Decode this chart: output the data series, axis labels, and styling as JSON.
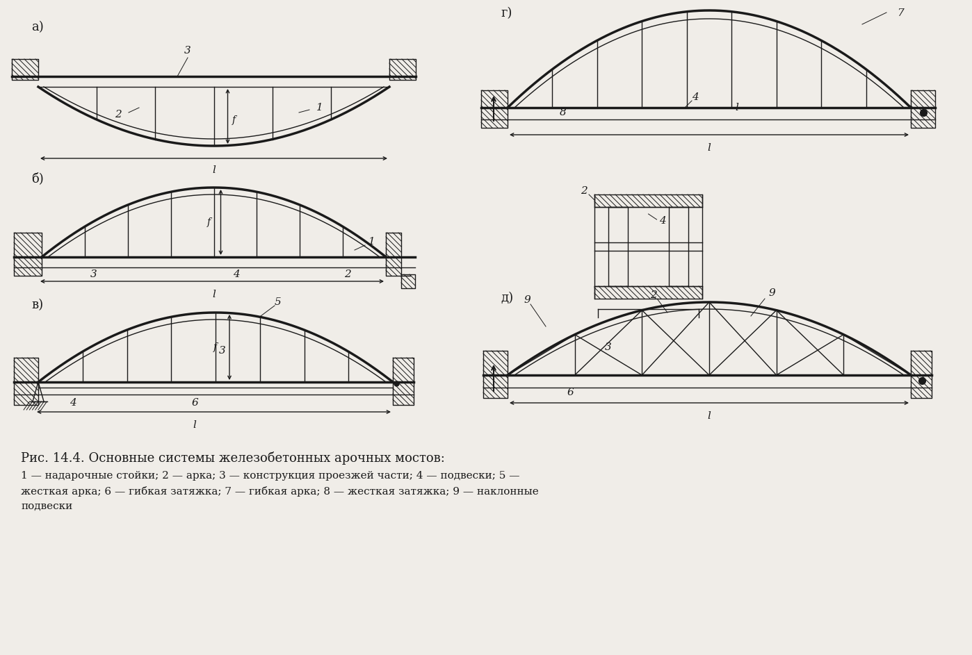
{
  "bg_color": "#f0ede8",
  "line_color": "#1a1a1a",
  "title": "Рис. 14.4. Основные системы железобетонных арочных мостов:",
  "caption_line1": "1 — надарочные стойки; 2 — арка; 3 — конструкция проезжей части; 4 — подвески; 5 —",
  "caption_line2": "жесткая арка; 6 — гибкая затяжка; 7 — гибкая арка; 8 — жесткая затяжка; 9 — наклонные",
  "caption_line3": "подвески"
}
